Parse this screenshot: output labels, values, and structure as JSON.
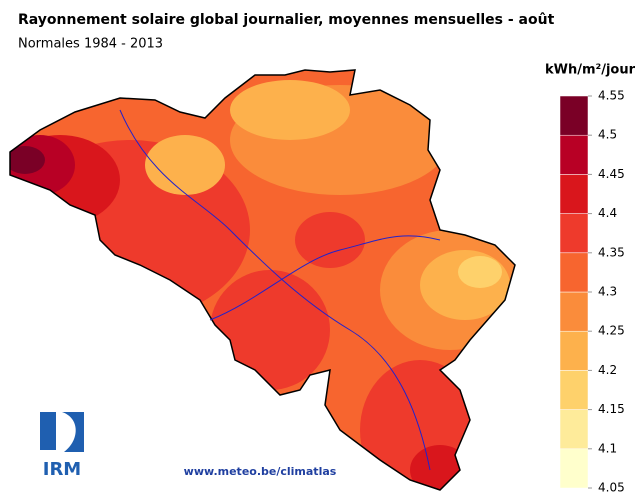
{
  "header": {
    "title": "Rayonnement solaire global journalier, moyennes mensuelles - août",
    "subtitle": "Normales 1984 - 2013"
  },
  "legend": {
    "unit": "kWh/m²/jour",
    "ticks": [
      4.05,
      4.1,
      4.15,
      4.2,
      4.25,
      4.3,
      4.35,
      4.4,
      4.45,
      4.5,
      4.55
    ],
    "colors": [
      "#ffffcc",
      "#feeb9a",
      "#fed16b",
      "#fdb14c",
      "#fa8c3b",
      "#f7652f",
      "#ee3a2c",
      "#d9161c",
      "#b80025",
      "#7a0026"
    ]
  },
  "footer": {
    "url": "www.meteo.be/climatlas",
    "logo": "IRM"
  }
}
